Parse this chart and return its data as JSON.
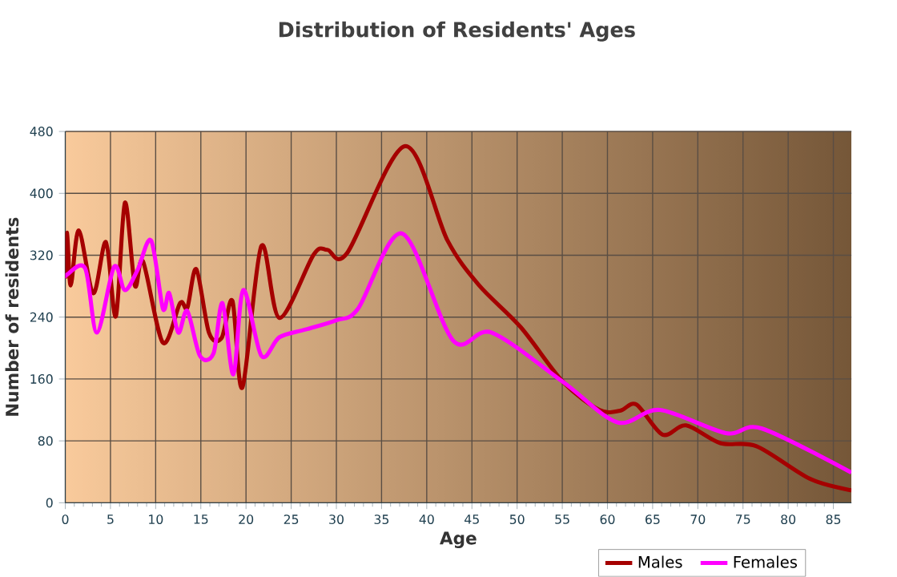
{
  "chart_data": {
    "type": "line",
    "title": "Distribution of Residents' Ages",
    "xlabel": "Age",
    "ylabel": "Number of residents",
    "xlim": [
      0,
      87
    ],
    "ylim": [
      0,
      480
    ],
    "xticks": [
      0,
      5,
      10,
      15,
      20,
      25,
      30,
      35,
      40,
      45,
      50,
      55,
      60,
      65,
      70,
      75,
      80,
      85
    ],
    "yticks": [
      0,
      80,
      160,
      240,
      320,
      400,
      480
    ],
    "grid": true,
    "legend": "bottom right",
    "marker": "none",
    "line_style": "solid",
    "series": [
      {
        "name": "Males",
        "color": "#a50000",
        "x": [
          0,
          0.2,
          0.6,
          1.5,
          3.1,
          4.5,
          5.6,
          6.6,
          7.7,
          8.6,
          10.8,
          12.7,
          13.5,
          14.5,
          15.9,
          17.3,
          18.5,
          19.6,
          21.7,
          23.7,
          27.5,
          29,
          31.2,
          37.6,
          42.3,
          45.8,
          50.4,
          55.1,
          59.1,
          61.4,
          63.2,
          66.1,
          68.7,
          72.5,
          76.5,
          82.4,
          87
        ],
        "values": [
          290,
          349,
          281,
          352,
          271,
          337,
          241,
          388,
          281,
          312,
          207,
          258,
          252,
          302,
          220,
          213,
          261,
          149,
          332,
          239,
          321,
          327,
          323,
          461,
          339,
          281,
          227,
          156,
          120,
          119,
          127,
          88,
          100,
          77,
          73,
          31,
          16
        ]
      },
      {
        "name": "Females",
        "color": "#ff00ff",
        "x": [
          0,
          0.2,
          2.2,
          3.5,
          5.4,
          6.6,
          8,
          9.5,
          10.8,
          11.5,
          12.5,
          13.5,
          14.9,
          16.4,
          17.4,
          18.6,
          19.7,
          21.7,
          23.7,
          26.6,
          30,
          32.4,
          37.3,
          42.9,
          47.2,
          55.1,
          61.1,
          65.8,
          73.1,
          77.1,
          87
        ],
        "values": [
          290,
          295,
          303,
          220,
          305,
          275,
          301,
          339,
          251,
          271,
          220,
          248,
          190,
          193,
          258,
          166,
          275,
          190,
          214,
          224,
          236,
          251,
          348,
          210,
          220,
          156,
          104,
          120,
          90,
          96,
          39
        ]
      }
    ]
  }
}
